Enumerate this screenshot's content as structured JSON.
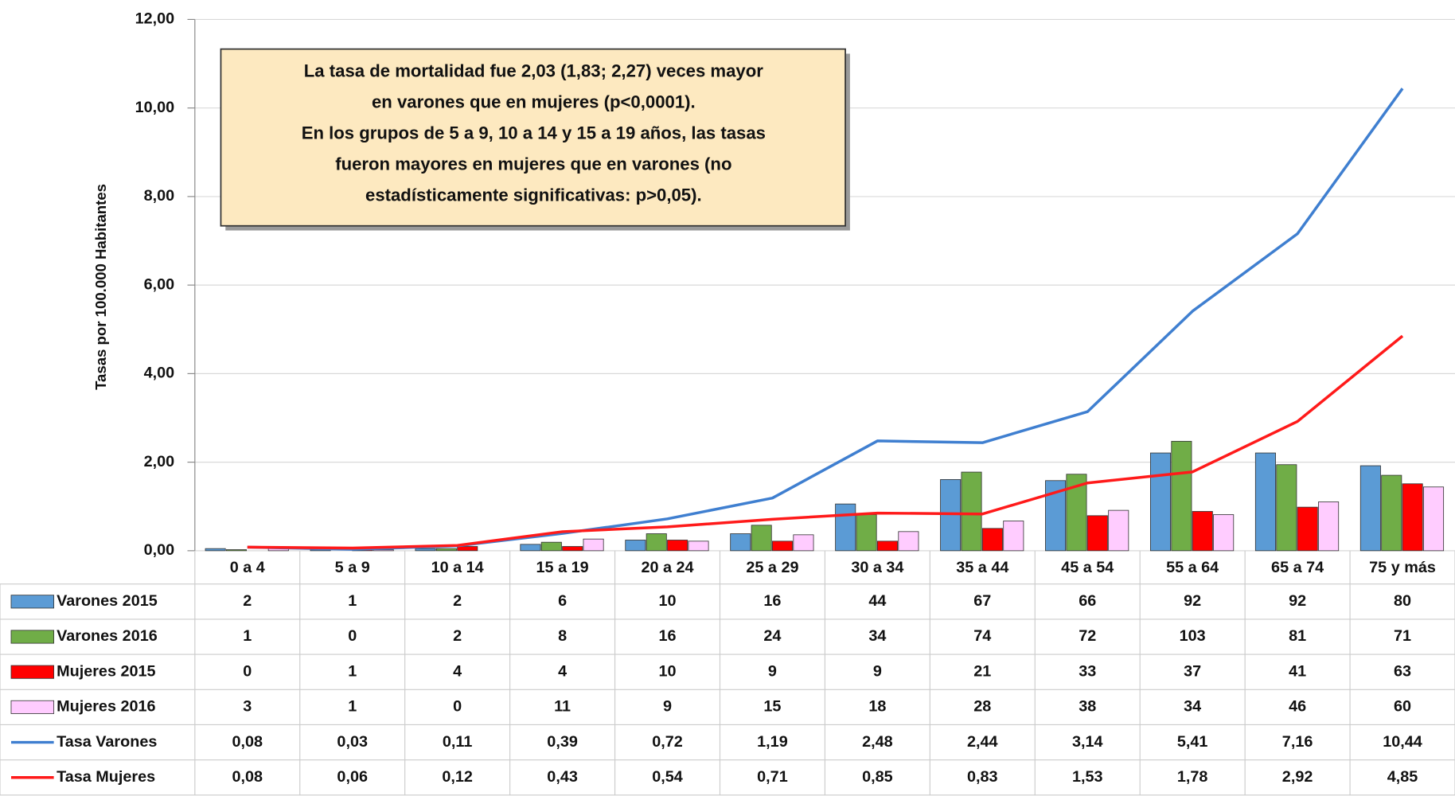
{
  "chart_data": {
    "type": "bar",
    "y_label": "Tasas por 100.000 Habitantes",
    "annotation": [
      "La tasa de mortalidad fue 2,03 (1,83; 2,27) veces mayor",
      "en varones que en mujeres (p<0,0001).",
      "En los grupos de 5 a 9, 10 a 14 y 15 a 19 años, las tasas",
      "fueron mayores en mujeres que en varones (no",
      "estadísticamente significativas: p>0,05)."
    ],
    "categories": [
      "0 a 4",
      "5 a 9",
      "10 a 14",
      "15 a 19",
      "20 a 24",
      "25 a 29",
      "30 a 34",
      "35 a 44",
      "45 a 54",
      "55 a 64",
      "65 a 74",
      "75 y más"
    ],
    "ylim": [
      0,
      12
    ],
    "yticks": [
      {
        "value": 0,
        "label": "0,00"
      },
      {
        "value": 2,
        "label": "2,00"
      },
      {
        "value": 4,
        "label": "4,00"
      },
      {
        "value": 6,
        "label": "6,00"
      },
      {
        "value": 8,
        "label": "8,00"
      },
      {
        "value": 10,
        "label": "10,00"
      },
      {
        "value": 12,
        "label": "12,00"
      }
    ],
    "y2lim": [
      0,
      500
    ],
    "grid": true,
    "series": [
      {
        "name": "Varones 2015",
        "type": "bar",
        "axis": "y2",
        "color": "#5b9bd5",
        "values": [
          2,
          1,
          2,
          6,
          10,
          16,
          44,
          67,
          66,
          92,
          92,
          80
        ]
      },
      {
        "name": "Varones 2016",
        "type": "bar",
        "axis": "y2",
        "color": "#70ad47",
        "values": [
          1,
          0,
          2,
          8,
          16,
          24,
          34,
          74,
          72,
          103,
          81,
          71
        ]
      },
      {
        "name": "Mujeres 2015",
        "type": "bar",
        "axis": "y2",
        "color": "#ff0000",
        "values": [
          0,
          1,
          4,
          4,
          10,
          9,
          9,
          21,
          33,
          37,
          41,
          63
        ]
      },
      {
        "name": "Mujeres 2016",
        "type": "bar",
        "axis": "y2",
        "color": "#ffccff",
        "values": [
          3,
          1,
          0,
          11,
          9,
          15,
          18,
          28,
          38,
          34,
          46,
          60
        ]
      },
      {
        "name": "Tasa Varones",
        "type": "line",
        "color": "#3f7fd0",
        "values": [
          0.08,
          0.03,
          0.11,
          0.39,
          0.72,
          1.19,
          2.48,
          2.44,
          3.14,
          5.41,
          7.16,
          10.44
        ],
        "value_labels": [
          "0,08",
          "0,03",
          "0,11",
          "0,39",
          "0,72",
          "1,19",
          "2,48",
          "2,44",
          "3,14",
          "5,41",
          "7,16",
          "10,44"
        ]
      },
      {
        "name": "Tasa Mujeres",
        "type": "line",
        "color": "#ff1a1a",
        "values": [
          0.08,
          0.06,
          0.12,
          0.43,
          0.54,
          0.71,
          0.85,
          0.83,
          1.53,
          1.78,
          2.92,
          4.85
        ],
        "value_labels": [
          "0,08",
          "0,06",
          "0,12",
          "0,43",
          "0,54",
          "0,71",
          "0,85",
          "0,83",
          "1,53",
          "1,78",
          "2,92",
          "4,85"
        ]
      }
    ]
  }
}
